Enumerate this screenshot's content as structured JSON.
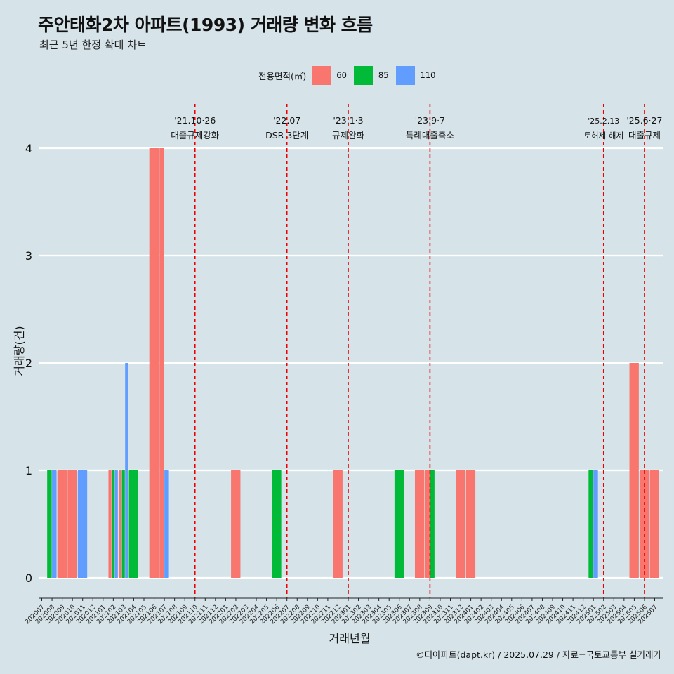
{
  "title": "주안태화2차 아파트(1993) 거래량 변화 흐름",
  "subtitle": "최근 5년 한정 확대 차트",
  "caption": "©디아파트(dapt.kr) / 2025.07.29 / 자료=국토교통부 실거래가",
  "legend": {
    "title": "전용면적(㎡)",
    "items": [
      {
        "label": "60",
        "color": "#f8766d"
      },
      {
        "label": "85",
        "color": "#00ba38"
      },
      {
        "label": "110",
        "color": "#619cff"
      }
    ]
  },
  "chart_data": {
    "type": "bar",
    "xlabel": "거래년월",
    "ylabel": "거래량(건)",
    "ylim": [
      0,
      4
    ],
    "yticks": [
      0,
      1,
      2,
      3,
      4
    ],
    "grid": "horizontal",
    "legend_position": "top",
    "categories": [
      "202007",
      "202008",
      "202009",
      "202010",
      "202011",
      "202012",
      "202101",
      "202102",
      "202103",
      "202104",
      "202105",
      "202106",
      "202107",
      "202108",
      "202109",
      "202110",
      "202111",
      "202112",
      "202201",
      "202202",
      "202203",
      "202204",
      "202205",
      "202206",
      "202207",
      "202208",
      "202209",
      "202210",
      "202211",
      "202212",
      "202301",
      "202302",
      "202303",
      "202304",
      "202305",
      "202306",
      "202307",
      "202308",
      "202309",
      "202310",
      "202311",
      "202312",
      "202401",
      "202402",
      "202403",
      "202404",
      "202405",
      "202406",
      "202407",
      "202408",
      "202409",
      "202410",
      "202411",
      "202412",
      "202501",
      "202502",
      "202503",
      "202504",
      "202505",
      "202506",
      "202507"
    ],
    "transactions": [
      {
        "month": "202008",
        "bars": [
          {
            "area": "85",
            "value": 1
          },
          {
            "area": "110",
            "value": 1
          }
        ]
      },
      {
        "month": "202009",
        "bars": [
          {
            "area": "60",
            "value": 1
          }
        ]
      },
      {
        "month": "202010",
        "bars": [
          {
            "area": "60",
            "value": 1
          }
        ]
      },
      {
        "month": "202011",
        "bars": [
          {
            "area": "110",
            "value": 1
          }
        ]
      },
      {
        "month": "202102",
        "bars": [
          {
            "area": "60",
            "value": 1
          },
          {
            "area": "85",
            "value": 1
          },
          {
            "area": "110",
            "value": 1
          }
        ]
      },
      {
        "month": "202103",
        "bars": [
          {
            "area": "60",
            "value": 1
          },
          {
            "area": "85",
            "value": 1
          },
          {
            "area": "110",
            "value": 2
          }
        ]
      },
      {
        "month": "202104",
        "bars": [
          {
            "area": "85",
            "value": 1
          }
        ]
      },
      {
        "month": "202106",
        "bars": [
          {
            "area": "60",
            "value": 4
          }
        ]
      },
      {
        "month": "202107",
        "bars": [
          {
            "area": "60",
            "value": 4
          },
          {
            "area": "110",
            "value": 1
          }
        ]
      },
      {
        "month": "202202",
        "bars": [
          {
            "area": "60",
            "value": 1
          }
        ]
      },
      {
        "month": "202206",
        "bars": [
          {
            "area": "85",
            "value": 1
          }
        ]
      },
      {
        "month": "202212",
        "bars": [
          {
            "area": "60",
            "value": 1
          }
        ]
      },
      {
        "month": "202306",
        "bars": [
          {
            "area": "85",
            "value": 1
          }
        ]
      },
      {
        "month": "202308",
        "bars": [
          {
            "area": "60",
            "value": 1
          }
        ]
      },
      {
        "month": "202309",
        "bars": [
          {
            "area": "60",
            "value": 1
          },
          {
            "area": "85",
            "value": 1
          }
        ]
      },
      {
        "month": "202312",
        "bars": [
          {
            "area": "60",
            "value": 1
          }
        ]
      },
      {
        "month": "202401",
        "bars": [
          {
            "area": "60",
            "value": 1
          }
        ]
      },
      {
        "month": "202501",
        "bars": [
          {
            "area": "85",
            "value": 1
          },
          {
            "area": "110",
            "value": 1
          }
        ]
      },
      {
        "month": "202505",
        "bars": [
          {
            "area": "60",
            "value": 2
          }
        ]
      },
      {
        "month": "202506",
        "bars": [
          {
            "area": "60",
            "value": 1
          }
        ]
      },
      {
        "month": "202507",
        "bars": [
          {
            "area": "60",
            "value": 1
          }
        ]
      }
    ],
    "events": [
      {
        "month": "202110",
        "date": "'21.10·26",
        "label": "대출규제강화"
      },
      {
        "month": "202207",
        "date": "'22.07",
        "label": "DSR 3단계"
      },
      {
        "month": "202301",
        "date": "'23.1·3",
        "label": "규제완화"
      },
      {
        "month": "202309",
        "date": "'23.9·7",
        "label": "특례대출축소"
      },
      {
        "month": "202502",
        "date": "'25.2.13",
        "label": "토허제 해제"
      },
      {
        "month": "202506",
        "date": "'25.6·27",
        "label": "대출규제"
      }
    ]
  }
}
